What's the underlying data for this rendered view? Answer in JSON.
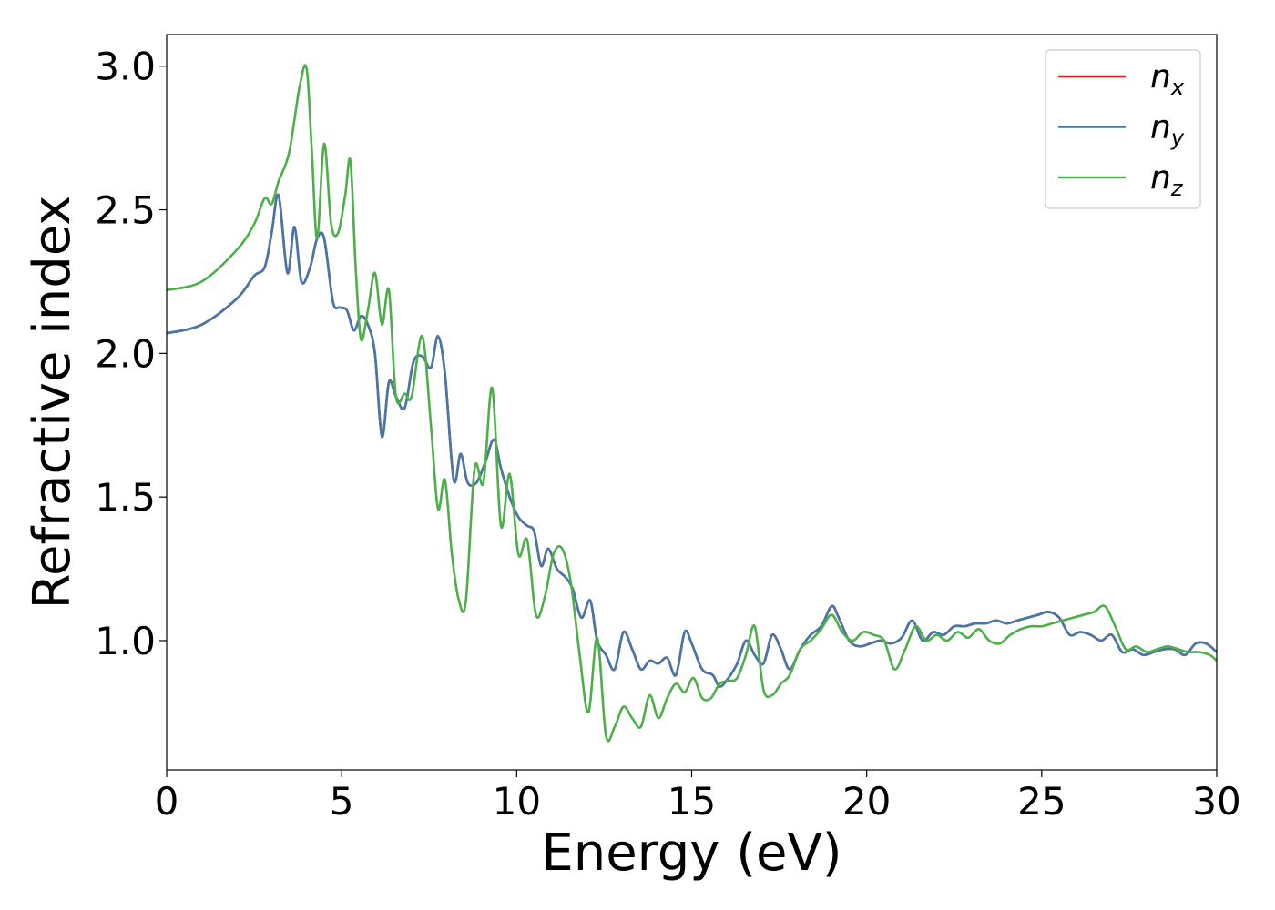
{
  "chart_data": {
    "type": "line",
    "title": "",
    "xlabel": "Energy (eV)",
    "ylabel": "Refractive index",
    "xlim": [
      0,
      30
    ],
    "ylim": [
      0.55,
      3.11
    ],
    "xticks": [
      0,
      5,
      10,
      15,
      20,
      25,
      30
    ],
    "xtick_labels": [
      "0",
      "5",
      "10",
      "15",
      "20",
      "25",
      "30"
    ],
    "yticks": [
      1.0,
      1.5,
      2.0,
      2.5,
      3.0
    ],
    "ytick_labels": [
      "1.0",
      "1.5",
      "2.0",
      "2.5",
      "3.0"
    ],
    "grid": false,
    "legend_position": "top-right",
    "series": [
      {
        "name": "n_x",
        "label_base": "n",
        "label_sub": "x",
        "color": "#e41a1c",
        "x": [
          0,
          1,
          2,
          2.5,
          2.8,
          3.0,
          3.2,
          3.45,
          3.65,
          3.85,
          4.1,
          4.3,
          4.5,
          4.75,
          4.95,
          5.15,
          5.35,
          5.55,
          5.75,
          5.95,
          6.15,
          6.35,
          6.55,
          6.8,
          7.05,
          7.3,
          7.55,
          7.75,
          7.95,
          8.2,
          8.4,
          8.6,
          8.85,
          9.1,
          9.35,
          9.55,
          9.8,
          10.05,
          10.3,
          10.5,
          10.7,
          10.9,
          11.15,
          11.4,
          11.6,
          11.85,
          12.1,
          12.3,
          12.55,
          12.8,
          13.05,
          13.3,
          13.55,
          13.8,
          14.05,
          14.3,
          14.55,
          14.8,
          15.0,
          15.3,
          15.6,
          15.8,
          16.05,
          16.3,
          16.55,
          16.8,
          17.05,
          17.3,
          17.55,
          17.8,
          18.1,
          18.4,
          18.7,
          19.0,
          19.2,
          19.5,
          19.8,
          20.1,
          20.4,
          20.7,
          21.0,
          21.3,
          21.6,
          21.9,
          22.2,
          22.5,
          22.8,
          23.1,
          23.4,
          23.7,
          24.0,
          24.3,
          24.6,
          24.9,
          25.2,
          25.5,
          25.8,
          26.1,
          26.4,
          26.7,
          27.0,
          27.3,
          27.6,
          27.9,
          28.2,
          28.5,
          28.8,
          29.1,
          29.4,
          29.7,
          30.0
        ],
        "values": [
          2.07,
          2.1,
          2.19,
          2.27,
          2.3,
          2.42,
          2.55,
          2.28,
          2.44,
          2.25,
          2.3,
          2.4,
          2.4,
          2.18,
          2.16,
          2.15,
          2.08,
          2.13,
          2.1,
          2.0,
          1.71,
          1.9,
          1.85,
          1.81,
          1.97,
          1.99,
          1.95,
          2.06,
          1.93,
          1.56,
          1.65,
          1.55,
          1.55,
          1.62,
          1.7,
          1.6,
          1.5,
          1.43,
          1.4,
          1.38,
          1.26,
          1.32,
          1.25,
          1.22,
          1.18,
          1.08,
          1.14,
          1.0,
          0.95,
          0.9,
          1.03,
          0.97,
          0.9,
          0.93,
          0.92,
          0.94,
          0.88,
          1.03,
          0.99,
          0.9,
          0.88,
          0.84,
          0.87,
          0.92,
          1.0,
          0.95,
          0.92,
          1.02,
          0.97,
          0.9,
          0.97,
          1.02,
          1.05,
          1.12,
          1.08,
          1.0,
          0.98,
          0.99,
          1.0,
          0.99,
          1.01,
          1.07,
          1.0,
          1.03,
          1.02,
          1.05,
          1.05,
          1.06,
          1.06,
          1.07,
          1.06,
          1.07,
          1.08,
          1.09,
          1.1,
          1.08,
          1.02,
          1.03,
          1.02,
          1.0,
          1.02,
          0.96,
          0.97,
          0.95,
          0.96,
          0.97,
          0.97,
          0.95,
          0.99,
          0.99,
          0.96
        ]
      },
      {
        "name": "n_y",
        "label_base": "n",
        "label_sub": "y",
        "color": "#4477aa",
        "x": [
          0,
          1,
          2,
          2.5,
          2.8,
          3.0,
          3.2,
          3.45,
          3.65,
          3.85,
          4.1,
          4.3,
          4.5,
          4.75,
          4.95,
          5.15,
          5.35,
          5.55,
          5.75,
          5.95,
          6.15,
          6.35,
          6.55,
          6.8,
          7.05,
          7.3,
          7.55,
          7.75,
          7.95,
          8.2,
          8.4,
          8.6,
          8.85,
          9.1,
          9.35,
          9.55,
          9.8,
          10.05,
          10.3,
          10.5,
          10.7,
          10.9,
          11.15,
          11.4,
          11.6,
          11.85,
          12.1,
          12.3,
          12.55,
          12.8,
          13.05,
          13.3,
          13.55,
          13.8,
          14.05,
          14.3,
          14.55,
          14.8,
          15.0,
          15.3,
          15.6,
          15.8,
          16.05,
          16.3,
          16.55,
          16.8,
          17.05,
          17.3,
          17.55,
          17.8,
          18.1,
          18.4,
          18.7,
          19.0,
          19.2,
          19.5,
          19.8,
          20.1,
          20.4,
          20.7,
          21.0,
          21.3,
          21.6,
          21.9,
          22.2,
          22.5,
          22.8,
          23.1,
          23.4,
          23.7,
          24.0,
          24.3,
          24.6,
          24.9,
          25.2,
          25.5,
          25.8,
          26.1,
          26.4,
          26.7,
          27.0,
          27.3,
          27.6,
          27.9,
          28.2,
          28.5,
          28.8,
          29.1,
          29.4,
          29.7,
          30.0
        ],
        "values": [
          2.07,
          2.1,
          2.19,
          2.27,
          2.3,
          2.42,
          2.55,
          2.28,
          2.44,
          2.25,
          2.3,
          2.4,
          2.4,
          2.18,
          2.16,
          2.15,
          2.08,
          2.13,
          2.1,
          2.0,
          1.71,
          1.9,
          1.85,
          1.81,
          1.97,
          1.99,
          1.95,
          2.06,
          1.93,
          1.56,
          1.65,
          1.55,
          1.55,
          1.62,
          1.7,
          1.6,
          1.5,
          1.43,
          1.4,
          1.38,
          1.26,
          1.32,
          1.25,
          1.22,
          1.18,
          1.08,
          1.14,
          1.0,
          0.95,
          0.9,
          1.03,
          0.97,
          0.9,
          0.93,
          0.92,
          0.94,
          0.88,
          1.03,
          0.99,
          0.9,
          0.88,
          0.84,
          0.87,
          0.92,
          1.0,
          0.95,
          0.92,
          1.02,
          0.97,
          0.9,
          0.97,
          1.02,
          1.05,
          1.12,
          1.08,
          1.0,
          0.98,
          0.99,
          1.0,
          0.99,
          1.01,
          1.07,
          1.0,
          1.03,
          1.02,
          1.05,
          1.05,
          1.06,
          1.06,
          1.07,
          1.06,
          1.07,
          1.08,
          1.09,
          1.1,
          1.08,
          1.02,
          1.03,
          1.02,
          1.0,
          1.02,
          0.96,
          0.97,
          0.95,
          0.96,
          0.97,
          0.97,
          0.95,
          0.99,
          0.99,
          0.96
        ]
      },
      {
        "name": "n_z",
        "label_base": "n",
        "label_sub": "z",
        "color": "#4daf4a",
        "x": [
          0,
          1,
          2,
          2.5,
          2.8,
          3.0,
          3.2,
          3.5,
          3.8,
          4.0,
          4.15,
          4.3,
          4.5,
          4.7,
          4.9,
          5.1,
          5.25,
          5.4,
          5.55,
          5.75,
          5.95,
          6.15,
          6.35,
          6.55,
          6.8,
          7.0,
          7.3,
          7.55,
          7.75,
          7.95,
          8.15,
          8.35,
          8.55,
          8.8,
          9.05,
          9.3,
          9.55,
          9.8,
          10.05,
          10.3,
          10.55,
          10.8,
          11.05,
          11.3,
          11.55,
          11.8,
          12.05,
          12.3,
          12.55,
          12.8,
          13.05,
          13.3,
          13.55,
          13.8,
          14.05,
          14.3,
          14.55,
          14.8,
          15.05,
          15.3,
          15.55,
          15.8,
          16.05,
          16.3,
          16.55,
          16.8,
          17.05,
          17.3,
          17.55,
          17.8,
          18.1,
          18.4,
          18.7,
          19.0,
          19.3,
          19.6,
          19.9,
          20.2,
          20.5,
          20.8,
          21.1,
          21.4,
          21.7,
          22.0,
          22.3,
          22.6,
          22.9,
          23.2,
          23.5,
          23.8,
          24.1,
          24.4,
          24.7,
          25.0,
          25.3,
          25.6,
          25.9,
          26.2,
          26.5,
          26.8,
          27.1,
          27.4,
          27.7,
          28.0,
          28.3,
          28.6,
          28.9,
          29.2,
          29.5,
          29.8,
          30.0
        ],
        "values": [
          2.22,
          2.25,
          2.36,
          2.45,
          2.54,
          2.52,
          2.6,
          2.7,
          2.93,
          2.99,
          2.7,
          2.4,
          2.73,
          2.45,
          2.42,
          2.55,
          2.67,
          2.3,
          2.05,
          2.15,
          2.28,
          2.1,
          2.22,
          1.85,
          1.86,
          1.85,
          2.06,
          1.75,
          1.46,
          1.56,
          1.3,
          1.14,
          1.14,
          1.6,
          1.55,
          1.88,
          1.4,
          1.58,
          1.3,
          1.35,
          1.09,
          1.15,
          1.3,
          1.32,
          1.2,
          0.95,
          0.75,
          1.01,
          0.67,
          0.7,
          0.77,
          0.73,
          0.7,
          0.81,
          0.73,
          0.8,
          0.85,
          0.82,
          0.87,
          0.8,
          0.8,
          0.85,
          0.86,
          0.87,
          0.95,
          1.05,
          0.83,
          0.81,
          0.85,
          0.88,
          0.97,
          1.0,
          1.04,
          1.09,
          1.03,
          1.0,
          1.03,
          1.02,
          1.0,
          0.9,
          0.97,
          1.05,
          1.0,
          1.02,
          1.0,
          1.03,
          1.01,
          1.04,
          1.0,
          0.99,
          1.02,
          1.04,
          1.05,
          1.05,
          1.06,
          1.07,
          1.08,
          1.09,
          1.1,
          1.12,
          1.05,
          0.97,
          0.98,
          0.96,
          0.97,
          0.98,
          0.97,
          0.96,
          0.96,
          0.95,
          0.93
        ]
      }
    ]
  }
}
